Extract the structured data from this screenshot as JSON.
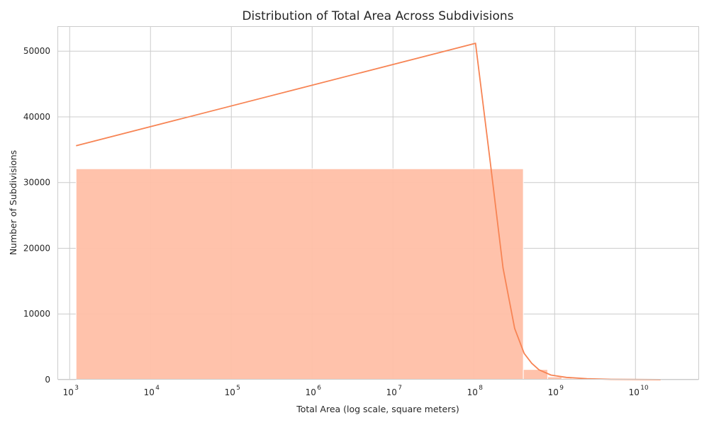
{
  "chart_data": {
    "type": "bar",
    "title": "Distribution of Total Area Across Subdivisions",
    "xlabel": "Total Area (log scale, square meters)",
    "ylabel": "Number of Subdivisions",
    "x_scale": "log",
    "xlim": [
      720,
      60000000000
    ],
    "ylim": [
      0,
      53800
    ],
    "grid": true,
    "x_ticks": [
      {
        "value": 1000,
        "base": "10",
        "exp": "3"
      },
      {
        "value": 10000,
        "base": "10",
        "exp": "4"
      },
      {
        "value": 100000,
        "base": "10",
        "exp": "5"
      },
      {
        "value": 1000000,
        "base": "10",
        "exp": "6"
      },
      {
        "value": 10000000,
        "base": "10",
        "exp": "7"
      },
      {
        "value": 100000000,
        "base": "10",
        "exp": "8"
      },
      {
        "value": 1000000000,
        "base": "10",
        "exp": "9"
      },
      {
        "value": 10000000000,
        "base": "10",
        "exp": "10"
      }
    ],
    "y_ticks": [
      {
        "value": 0,
        "label": "0"
      },
      {
        "value": 10000,
        "label": "10000"
      },
      {
        "value": 20000,
        "label": "20000"
      },
      {
        "value": 30000,
        "label": "30000"
      },
      {
        "value": 40000,
        "label": "40000"
      },
      {
        "value": 50000,
        "label": "50000"
      }
    ],
    "bins": [
      {
        "x0": 1200,
        "x1": 410000000,
        "count": 32100
      },
      {
        "x0": 410000000,
        "x1": 820000000,
        "count": 1550
      },
      {
        "x0": 820000000,
        "x1": 1230000000,
        "count": 420
      },
      {
        "x0": 1230000000,
        "x1": 1640000000,
        "count": 200
      },
      {
        "x0": 1640000000,
        "x1": 2460000000,
        "count": 110
      },
      {
        "x0": 2460000000,
        "x1": 4100000000,
        "count": 60
      },
      {
        "x0": 4100000000,
        "x1": 8200000000,
        "count": 30
      },
      {
        "x0": 8200000000,
        "x1": 20500000000,
        "count": 15
      }
    ],
    "density_curve": [
      {
        "x": 1200,
        "y": 35600
      },
      {
        "x": 105000000,
        "y": 51200
      },
      {
        "x": 160000000,
        "y": 33000
      },
      {
        "x": 230000000,
        "y": 17000
      },
      {
        "x": 320000000,
        "y": 7800
      },
      {
        "x": 420000000,
        "y": 4000
      },
      {
        "x": 520000000,
        "y": 2500
      },
      {
        "x": 640000000,
        "y": 1500
      },
      {
        "x": 900000000,
        "y": 700
      },
      {
        "x": 1400000000,
        "y": 350
      },
      {
        "x": 2500000000,
        "y": 150
      },
      {
        "x": 5000000000,
        "y": 50
      },
      {
        "x": 20500000000,
        "y": 10
      }
    ],
    "colors": {
      "bar_fill": "#ffbfa6",
      "bar_edge": "#ffffff",
      "curve": "#f78454",
      "grid": "#cccccc",
      "text": "#262626"
    }
  }
}
